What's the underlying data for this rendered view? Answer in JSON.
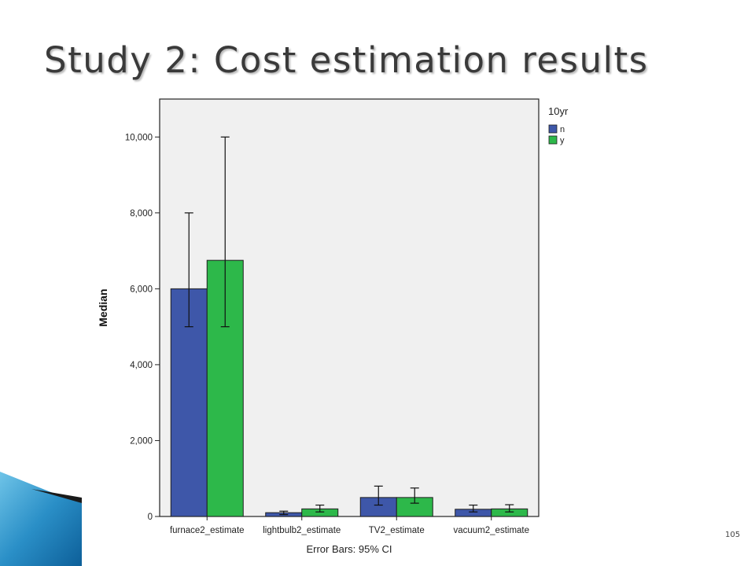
{
  "slide": {
    "title": "Study 2: Cost estimation results",
    "page_number": "105"
  },
  "chart_data": {
    "type": "bar",
    "categories": [
      "furnace2_estimate",
      "lightbulb2_estimate",
      "TV2_estimate",
      "vacuum2_estimate"
    ],
    "series": [
      {
        "name": "n",
        "color": "#3e57a9",
        "values": [
          6000,
          100,
          500,
          190
        ],
        "ci_low": [
          5000,
          50,
          300,
          120
        ],
        "ci_high": [
          8000,
          140,
          800,
          300
        ]
      },
      {
        "name": "y",
        "color": "#2db84a",
        "values": [
          6750,
          200,
          500,
          200
        ],
        "ci_low": [
          5000,
          120,
          350,
          120
        ],
        "ci_high": [
          10000,
          300,
          750,
          310
        ]
      }
    ],
    "ylabel": "Median",
    "xlabel": "Error Bars: 95% CI",
    "legend_title": "10yr",
    "legend_position": "right",
    "ylim": [
      0,
      11000
    ],
    "yticks": [
      {
        "value": 0,
        "label": "0"
      },
      {
        "value": 2000,
        "label": "2,000"
      },
      {
        "value": 4000,
        "label": "4,000"
      },
      {
        "value": 6000,
        "label": "6,000"
      },
      {
        "value": 8000,
        "label": "8,000"
      },
      {
        "value": 10000,
        "label": "10,000"
      }
    ],
    "plot_background": "#f0f0f0",
    "grid": false
  }
}
